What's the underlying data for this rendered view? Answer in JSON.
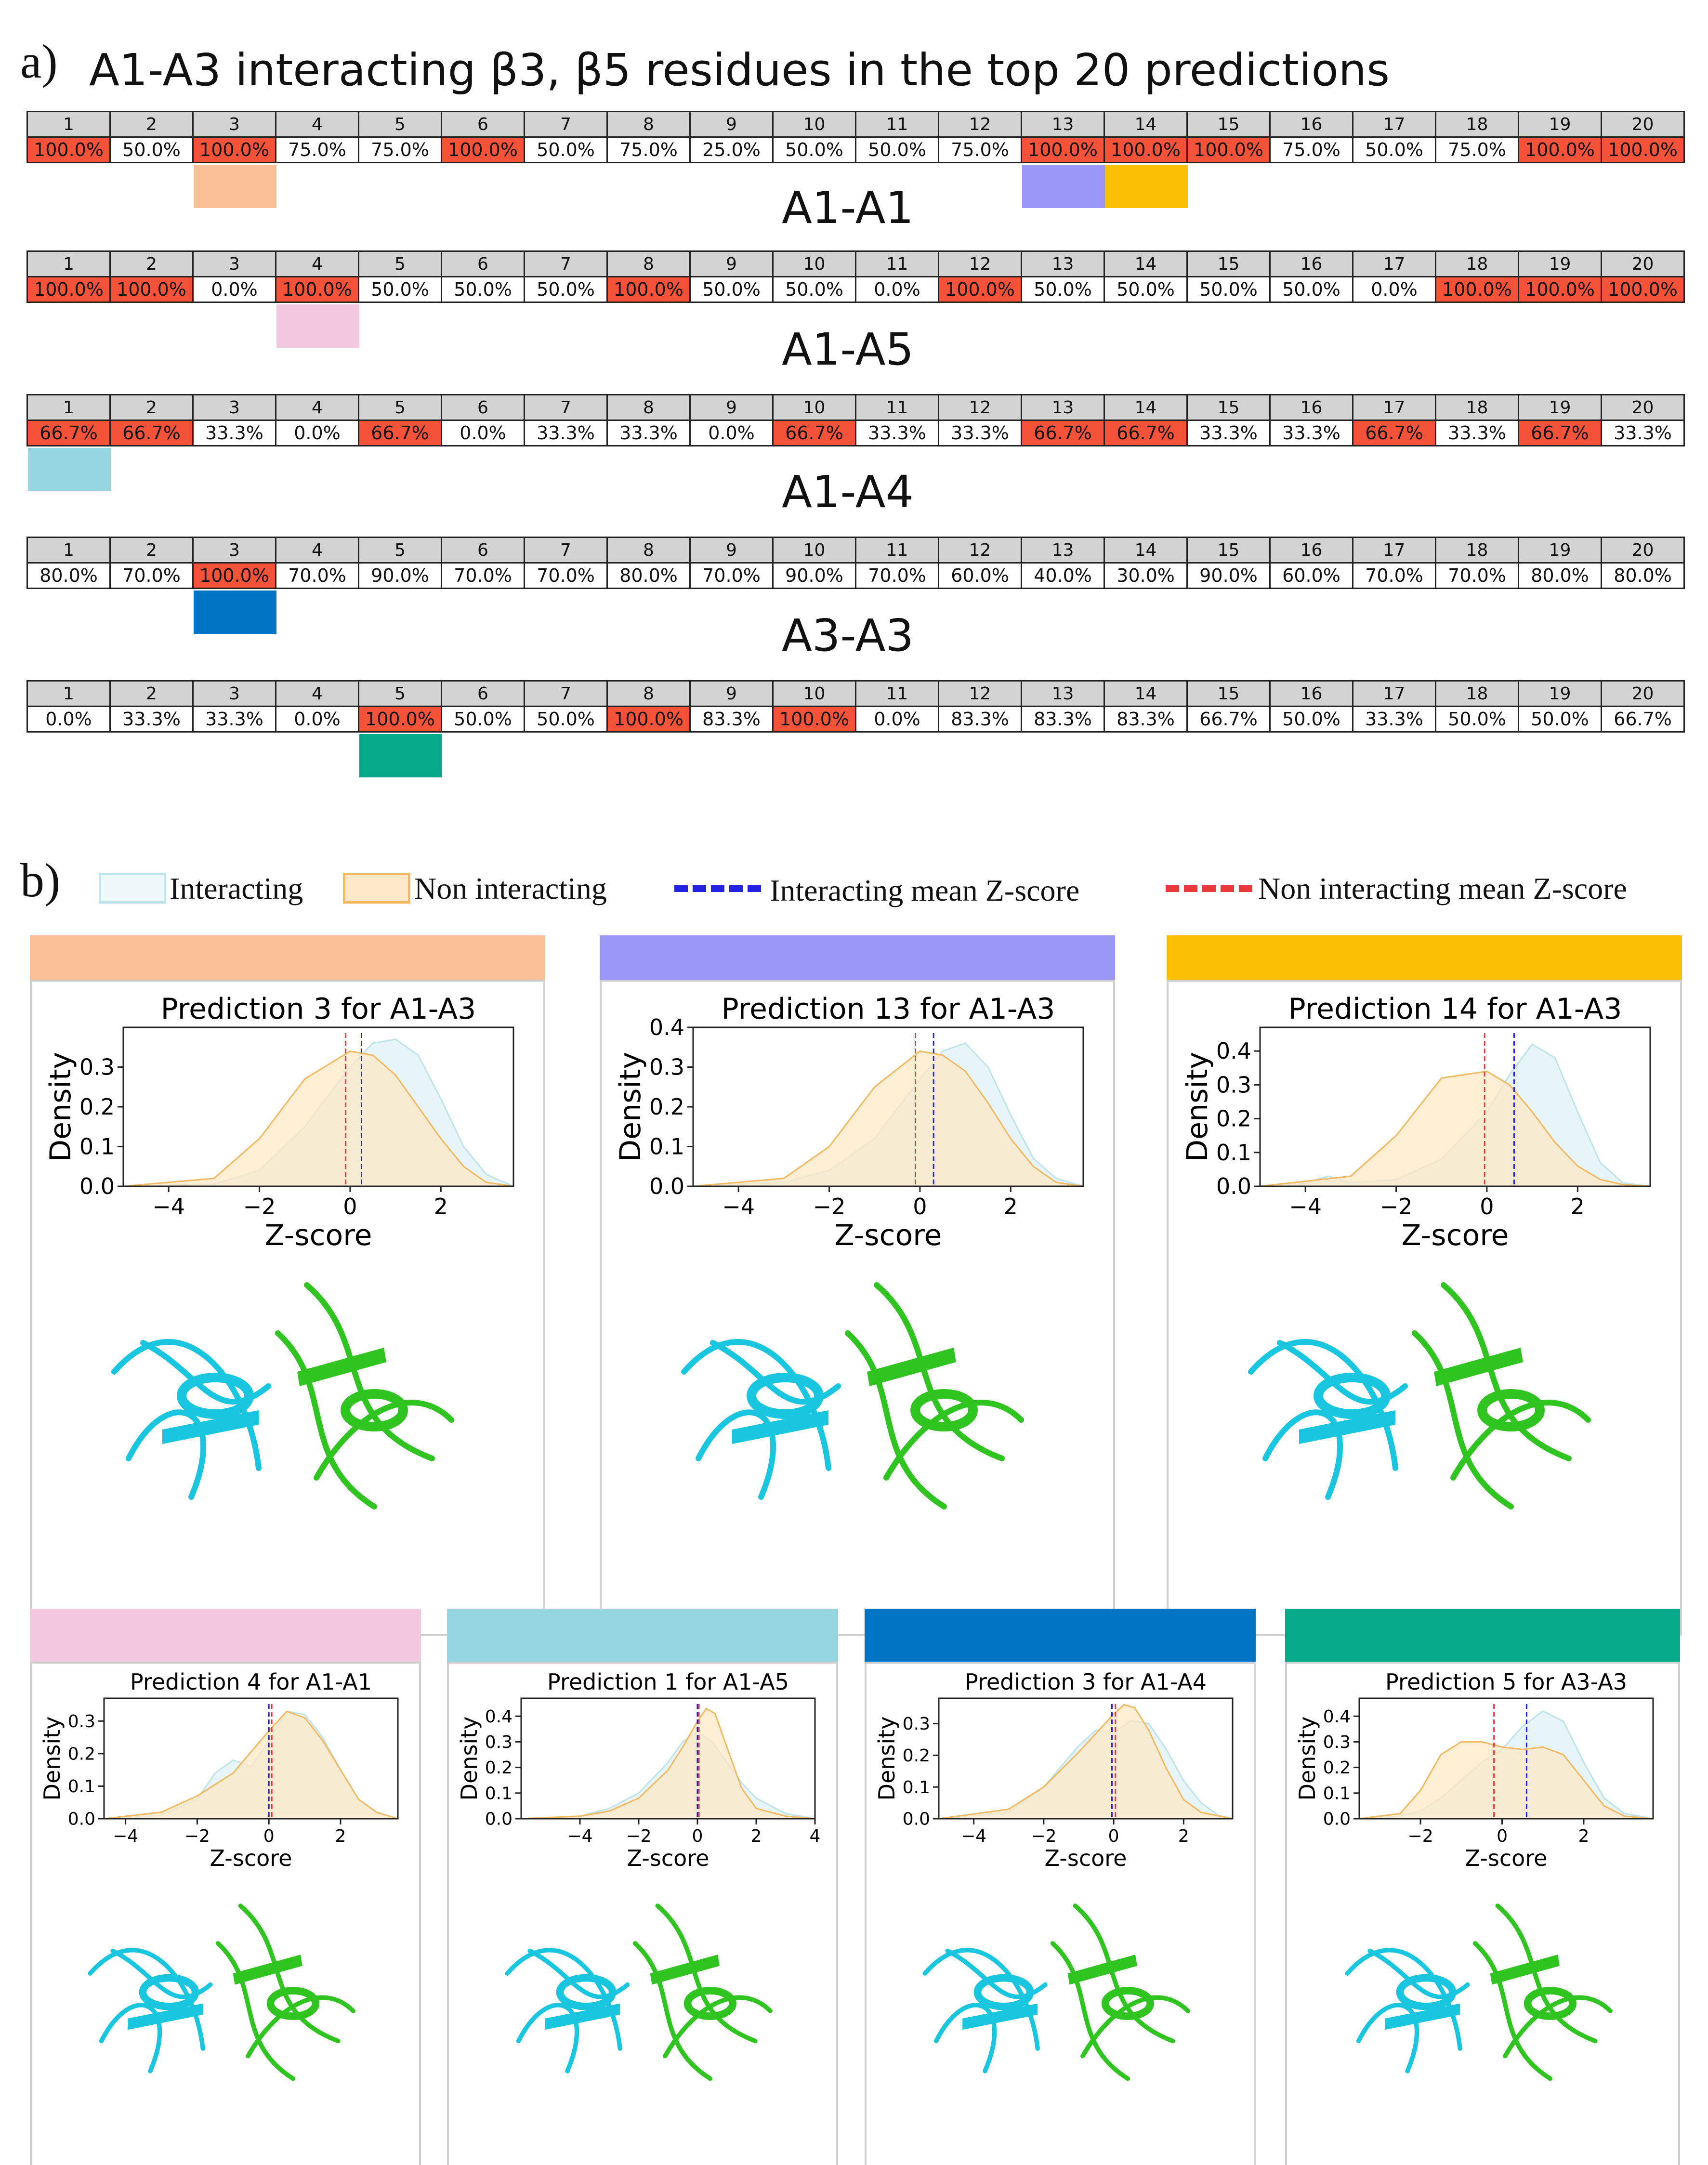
{
  "panel_a": {
    "letter": "a)",
    "title": "A1-A3 interacting β3, β5 residues in the top 20 predictions",
    "tables": [
      {
        "name": "A1-A3",
        "show_title": false,
        "values": [
          "100.0%",
          "50.0%",
          "100.0%",
          "75.0%",
          "75.0%",
          "100.0%",
          "50.0%",
          "75.0%",
          "25.0%",
          "50.0%",
          "50.0%",
          "75.0%",
          "100.0%",
          "100.0%",
          "100.0%",
          "75.0%",
          "50.0%",
          "75.0%",
          "100.0%",
          "100.0%"
        ],
        "highlight": [
          1,
          0,
          1,
          0,
          0,
          1,
          0,
          0,
          0,
          0,
          0,
          0,
          1,
          1,
          1,
          0,
          0,
          0,
          1,
          1
        ]
      },
      {
        "name": "A1-A1",
        "show_title": true,
        "values": [
          "100.0%",
          "100.0%",
          "0.0%",
          "100.0%",
          "50.0%",
          "50.0%",
          "50.0%",
          "100.0%",
          "50.0%",
          "50.0%",
          "0.0%",
          "100.0%",
          "50.0%",
          "50.0%",
          "50.0%",
          "50.0%",
          "0.0%",
          "100.0%",
          "100.0%",
          "100.0%"
        ],
        "highlight": [
          1,
          1,
          0,
          1,
          0,
          0,
          0,
          1,
          0,
          0,
          0,
          1,
          0,
          0,
          0,
          0,
          0,
          1,
          1,
          1
        ]
      },
      {
        "name": "A1-A5",
        "show_title": true,
        "values": [
          "66.7%",
          "66.7%",
          "33.3%",
          "0.0%",
          "66.7%",
          "0.0%",
          "33.3%",
          "33.3%",
          "0.0%",
          "66.7%",
          "33.3%",
          "33.3%",
          "66.7%",
          "66.7%",
          "33.3%",
          "33.3%",
          "66.7%",
          "33.3%",
          "66.7%",
          "33.3%"
        ],
        "highlight": [
          1,
          1,
          0,
          0,
          1,
          0,
          0,
          0,
          0,
          1,
          0,
          0,
          1,
          1,
          0,
          0,
          1,
          0,
          1,
          0
        ]
      },
      {
        "name": "A1-A4",
        "show_title": true,
        "values": [
          "80.0%",
          "70.0%",
          "100.0%",
          "70.0%",
          "90.0%",
          "70.0%",
          "70.0%",
          "80.0%",
          "70.0%",
          "90.0%",
          "70.0%",
          "60.0%",
          "40.0%",
          "30.0%",
          "90.0%",
          "60.0%",
          "70.0%",
          "70.0%",
          "80.0%",
          "80.0%"
        ],
        "highlight": [
          0,
          0,
          1,
          0,
          0,
          0,
          0,
          0,
          0,
          0,
          0,
          0,
          0,
          0,
          0,
          0,
          0,
          0,
          0,
          0
        ]
      },
      {
        "name": "A3-A3",
        "show_title": true,
        "values": [
          "0.0%",
          "33.3%",
          "33.3%",
          "0.0%",
          "100.0%",
          "50.0%",
          "50.0%",
          "100.0%",
          "83.3%",
          "100.0%",
          "0.0%",
          "83.3%",
          "83.3%",
          "83.3%",
          "66.7%",
          "50.0%",
          "33.3%",
          "50.0%",
          "50.0%",
          "66.7%"
        ],
        "highlight": [
          0,
          0,
          0,
          0,
          1,
          0,
          0,
          1,
          0,
          1,
          0,
          0,
          0,
          0,
          0,
          0,
          0,
          0,
          0,
          0
        ]
      }
    ],
    "headers": [
      "1",
      "2",
      "3",
      "4",
      "5",
      "6",
      "7",
      "8",
      "9",
      "10",
      "11",
      "12",
      "13",
      "14",
      "15",
      "16",
      "17",
      "18",
      "19",
      "20"
    ],
    "markers": [
      {
        "table": 0,
        "col": 3,
        "color": "#fbbf97"
      },
      {
        "table": 0,
        "col": 13,
        "color": "#9b97f8"
      },
      {
        "table": 0,
        "col": 14,
        "color": "#fbbf05"
      },
      {
        "table": 1,
        "col": 4,
        "color": "#f1c8e0"
      },
      {
        "table": 2,
        "col": 1,
        "color": "#96d6e0"
      },
      {
        "table": 3,
        "col": 3,
        "color": "#0175c4"
      },
      {
        "table": 4,
        "col": 5,
        "color": "#07a98b"
      }
    ]
  },
  "panel_b": {
    "letter": "b)",
    "legend": {
      "interacting": "Interacting",
      "non_interacting": "Non interacting",
      "interacting_mean": "Interacting mean Z-score",
      "non_interacting_mean": "Non interacting mean Z-score",
      "colors": {
        "interacting_fill": "#e6f4f7",
        "interacting_edge": "#bfe3ea",
        "non_fill": "#fce8c6",
        "non_edge": "#f3b860",
        "int_mean": "#2222e0",
        "non_mean": "#e83a3a"
      }
    }
  },
  "chart_data": [
    {
      "type": "area",
      "title": "Prediction 3 for A1-A3",
      "header_color": "#fbbf97",
      "xlabel": "Z-score",
      "ylabel": "Density",
      "xlim": [
        -5,
        3.6
      ],
      "ylim": [
        0,
        0.4
      ],
      "xticks": [
        "−4",
        "−2",
        "0",
        "2"
      ],
      "yticks": [
        "0.0",
        "0.1",
        "0.2",
        "0.3"
      ],
      "series": [
        {
          "name": "Interacting",
          "x": [
            -5,
            -3,
            -2,
            -1,
            0,
            0.5,
            1,
            1.5,
            2,
            2.5,
            3,
            3.6
          ],
          "y": [
            0,
            0.005,
            0.04,
            0.15,
            0.3,
            0.36,
            0.37,
            0.33,
            0.22,
            0.1,
            0.03,
            0
          ]
        },
        {
          "name": "Non interacting",
          "x": [
            -5,
            -3,
            -2,
            -1,
            0,
            0.5,
            1,
            1.5,
            2,
            2.5,
            3,
            3.6
          ],
          "y": [
            0,
            0.02,
            0.12,
            0.27,
            0.34,
            0.33,
            0.28,
            0.2,
            0.12,
            0.05,
            0.01,
            0
          ]
        }
      ],
      "interacting_mean": 0.25,
      "non_interacting_mean": -0.1
    },
    {
      "type": "area",
      "title": "Prediction 13 for A1-A3",
      "header_color": "#9b97f8",
      "xlabel": "Z-score",
      "ylabel": "Density",
      "xlim": [
        -5,
        3.6
      ],
      "ylim": [
        0,
        0.4
      ],
      "xticks": [
        "−4",
        "−2",
        "0",
        "2"
      ],
      "yticks": [
        "0.0",
        "0.1",
        "0.2",
        "0.3",
        "0.4"
      ],
      "series": [
        {
          "name": "Interacting",
          "x": [
            -5,
            -3,
            -2,
            -1,
            0,
            0.5,
            1,
            1.5,
            2,
            2.5,
            3,
            3.6
          ],
          "y": [
            0,
            0.01,
            0.04,
            0.12,
            0.27,
            0.34,
            0.36,
            0.3,
            0.18,
            0.07,
            0.02,
            0
          ]
        },
        {
          "name": "Non interacting",
          "x": [
            -5,
            -3,
            -2,
            -1,
            0,
            0.5,
            1,
            1.5,
            2,
            2.5,
            3,
            3.6
          ],
          "y": [
            0,
            0.02,
            0.1,
            0.25,
            0.34,
            0.33,
            0.29,
            0.21,
            0.12,
            0.05,
            0.01,
            0
          ]
        }
      ],
      "interacting_mean": 0.3,
      "non_interacting_mean": -0.1
    },
    {
      "type": "area",
      "title": "Prediction 14 for A1-A3",
      "header_color": "#fbbf05",
      "xlabel": "Z-score",
      "ylabel": "Density",
      "xlim": [
        -5,
        3.6
      ],
      "ylim": [
        0,
        0.47
      ],
      "xticks": [
        "−4",
        "−2",
        "0",
        "2"
      ],
      "yticks": [
        "0.0",
        "0.1",
        "0.2",
        "0.3",
        "0.4"
      ],
      "series": [
        {
          "name": "Interacting",
          "x": [
            -5,
            -4,
            -3.5,
            -3,
            -2,
            -1,
            0,
            0.5,
            1,
            1.5,
            2,
            2.5,
            3,
            3.6
          ],
          "y": [
            0,
            0.01,
            0.03,
            0.01,
            0.02,
            0.08,
            0.22,
            0.33,
            0.42,
            0.38,
            0.22,
            0.07,
            0.01,
            0
          ]
        },
        {
          "name": "Non interacting",
          "x": [
            -5,
            -3,
            -2,
            -1,
            0,
            0.5,
            1,
            1.5,
            2,
            2.5,
            3,
            3.6
          ],
          "y": [
            0,
            0.03,
            0.15,
            0.32,
            0.34,
            0.3,
            0.22,
            0.13,
            0.06,
            0.02,
            0.005,
            0
          ]
        }
      ],
      "interacting_mean": 0.6,
      "non_interacting_mean": -0.05
    },
    {
      "type": "area",
      "title": "Prediction 4 for A1-A1",
      "header_color": "#f1c8e0",
      "xlabel": "Z-score",
      "ylabel": "Density",
      "xlim": [
        -4.6,
        3.6
      ],
      "ylim": [
        0,
        0.37
      ],
      "xticks": [
        "−4",
        "−2",
        "0",
        "2"
      ],
      "yticks": [
        "0.0",
        "0.1",
        "0.2",
        "0.3"
      ],
      "series": [
        {
          "name": "Interacting",
          "x": [
            -4.6,
            -3,
            -2,
            -1.5,
            -1,
            -0.5,
            0,
            0.5,
            1,
            1.5,
            2,
            2.5,
            3,
            3.6
          ],
          "y": [
            0,
            0.01,
            0.06,
            0.14,
            0.18,
            0.16,
            0.24,
            0.33,
            0.32,
            0.25,
            0.15,
            0.06,
            0.02,
            0
          ]
        },
        {
          "name": "Non interacting",
          "x": [
            -4.6,
            -3,
            -2,
            -1,
            0,
            0.5,
            1,
            1.5,
            2,
            2.5,
            3,
            3.6
          ],
          "y": [
            0,
            0.02,
            0.07,
            0.14,
            0.27,
            0.33,
            0.31,
            0.24,
            0.15,
            0.06,
            0.02,
            0
          ]
        }
      ],
      "interacting_mean": 0.0,
      "non_interacting_mean": 0.08
    },
    {
      "type": "area",
      "title": "Prediction 1 for A1-A5",
      "header_color": "#96d6e0",
      "xlabel": "Z-score",
      "ylabel": "Density",
      "xlim": [
        -6,
        4
      ],
      "ylim": [
        0,
        0.47
      ],
      "xticks": [
        "−4",
        "−2",
        "0",
        "2",
        "4"
      ],
      "yticks": [
        "0.0",
        "0.1",
        "0.2",
        "0.3",
        "0.4"
      ],
      "series": [
        {
          "name": "Interacting",
          "x": [
            -6,
            -4,
            -3,
            -2,
            -1,
            -0.5,
            0,
            0.5,
            1,
            1.5,
            2,
            3,
            4
          ],
          "y": [
            0,
            0.01,
            0.04,
            0.1,
            0.22,
            0.3,
            0.34,
            0.3,
            0.22,
            0.14,
            0.08,
            0.02,
            0
          ]
        },
        {
          "name": "Non interacting",
          "x": [
            -6,
            -4,
            -3,
            -2,
            -1,
            -0.5,
            0,
            0.3,
            0.6,
            1,
            1.5,
            2,
            3,
            4
          ],
          "y": [
            0,
            0.01,
            0.03,
            0.08,
            0.19,
            0.28,
            0.38,
            0.43,
            0.41,
            0.28,
            0.12,
            0.04,
            0.01,
            0
          ]
        }
      ],
      "interacting_mean": 0.0,
      "non_interacting_mean": 0.05
    },
    {
      "type": "area",
      "title": "Prediction 3 for A1-A4",
      "header_color": "#0175c4",
      "xlabel": "Z-score",
      "ylabel": "Density",
      "xlim": [
        -5,
        3.4
      ],
      "ylim": [
        0,
        0.38
      ],
      "xticks": [
        "−4",
        "−2",
        "0",
        "2"
      ],
      "yticks": [
        "0.0",
        "0.1",
        "0.2",
        "0.3"
      ],
      "series": [
        {
          "name": "Interacting",
          "x": [
            -5,
            -3,
            -2,
            -1,
            -0.5,
            0,
            0.5,
            1,
            1.5,
            2,
            2.5,
            3,
            3.4
          ],
          "y": [
            0,
            0.02,
            0.1,
            0.23,
            0.28,
            0.27,
            0.31,
            0.3,
            0.22,
            0.12,
            0.05,
            0.01,
            0
          ]
        },
        {
          "name": "Non interacting",
          "x": [
            -5,
            -3,
            -2,
            -1,
            -0.5,
            0,
            0.3,
            0.6,
            1,
            1.5,
            2,
            2.5,
            3.4
          ],
          "y": [
            0,
            0.03,
            0.1,
            0.21,
            0.27,
            0.33,
            0.36,
            0.35,
            0.28,
            0.16,
            0.06,
            0.02,
            0
          ]
        }
      ],
      "interacting_mean": -0.05,
      "non_interacting_mean": 0.05
    },
    {
      "type": "area",
      "title": "Prediction 5 for A3-A3",
      "header_color": "#07a98b",
      "xlabel": "Z-score",
      "ylabel": "Density",
      "xlim": [
        -3.5,
        3.7
      ],
      "ylim": [
        0,
        0.47
      ],
      "xticks": [
        "−2",
        "0",
        "2"
      ],
      "yticks": [
        "0.0",
        "0.1",
        "0.2",
        "0.3",
        "0.4"
      ],
      "series": [
        {
          "name": "Interacting",
          "x": [
            -3.5,
            -2.5,
            -2,
            -1.5,
            -1,
            -0.5,
            0,
            0.5,
            1,
            1.5,
            2,
            2.5,
            3,
            3.7
          ],
          "y": [
            0,
            0.01,
            0.03,
            0.08,
            0.15,
            0.22,
            0.27,
            0.36,
            0.42,
            0.38,
            0.22,
            0.08,
            0.02,
            0
          ]
        },
        {
          "name": "Non interacting",
          "x": [
            -3.5,
            -2.5,
            -2,
            -1.5,
            -1,
            -0.5,
            0,
            0.5,
            1,
            1.5,
            2,
            2.5,
            3,
            3.7
          ],
          "y": [
            0,
            0.02,
            0.11,
            0.25,
            0.3,
            0.3,
            0.28,
            0.27,
            0.28,
            0.25,
            0.15,
            0.05,
            0.01,
            0
          ]
        }
      ],
      "interacting_mean": 0.6,
      "non_interacting_mean": -0.2
    }
  ]
}
